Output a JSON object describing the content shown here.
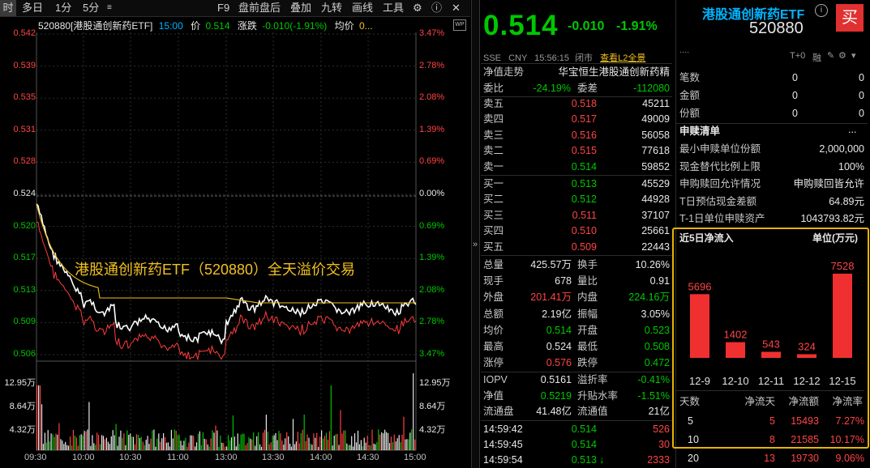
{
  "toolbar": {
    "items": [
      "时",
      "多日",
      "1分",
      "5分",
      "F9",
      "盘前盘后",
      "叠加",
      "九转",
      "画线",
      "工具"
    ],
    "active": "时"
  },
  "chart": {
    "info_code": "520880[港股通创新药ETF]",
    "info_time": "15:00",
    "info_price_label": "价",
    "info_price": "0.514",
    "info_change_label": "涨跌",
    "info_change": "-0.010(-1.91%)",
    "info_avg_label": "均价",
    "info_avg": "0...",
    "y_left": [
      "0.542",
      "0.539",
      "0.535",
      "0.531",
      "0.528",
      "0.524",
      "0.520",
      "0.517",
      "0.513",
      "0.509",
      "0.506"
    ],
    "y_right": [
      "3.47%",
      "2.78%",
      "2.08%",
      "1.39%",
      "0.69%",
      "0.00%",
      "0.69%",
      "1.39%",
      "2.08%",
      "2.78%",
      "3.47%"
    ],
    "vol_left": [
      "12.95万",
      "8.64万",
      "4.32万"
    ],
    "vol_right": [
      "12.95万",
      "8.64万",
      "4.32万"
    ],
    "x_labels": [
      "09:30",
      "10:00",
      "10:30",
      "11:00",
      "13:00",
      "13:30",
      "14:00",
      "14:30",
      "15:00"
    ],
    "annotation": "港股通创新药ETF（520880）全天溢价交易"
  },
  "header": {
    "price": "0.514",
    "change": "-0.010",
    "change_pct": "-1.91%",
    "name": "港股通创新药ETF",
    "code": "520880",
    "buy_label": "买",
    "exchange": "SSE",
    "currency": "CNY",
    "time": "15:56:15",
    "status": "闭市",
    "l2": "查看L2全景",
    "t0": "T+0",
    "rong": "融"
  },
  "nav": {
    "label": "净值走势",
    "tracking": "华宝恒生港股通创新药精"
  },
  "weibi": {
    "label1": "委比",
    "value1": "-24.19%",
    "label2": "委差",
    "value2": "-112080"
  },
  "asks": [
    {
      "label": "卖五",
      "price": "0.518",
      "vol": "45211"
    },
    {
      "label": "卖四",
      "price": "0.517",
      "vol": "49009"
    },
    {
      "label": "卖三",
      "price": "0.516",
      "vol": "56058"
    },
    {
      "label": "卖二",
      "price": "0.515",
      "vol": "77618"
    },
    {
      "label": "卖一",
      "price": "0.514",
      "vol": "59852"
    }
  ],
  "bids": [
    {
      "label": "买一",
      "price": "0.513",
      "vol": "45529"
    },
    {
      "label": "买二",
      "price": "0.512",
      "vol": "44928"
    },
    {
      "label": "买三",
      "price": "0.511",
      "vol": "37107"
    },
    {
      "label": "买四",
      "price": "0.510",
      "vol": "25661"
    },
    {
      "label": "买五",
      "price": "0.509",
      "vol": "22443"
    }
  ],
  "stats": [
    {
      "l1": "总量",
      "v1": "425.57万",
      "c1": "white",
      "l2": "换手",
      "v2": "10.26%",
      "c2": "white"
    },
    {
      "l1": "现手",
      "v1": "678",
      "c1": "white",
      "l2": "量比",
      "v2": "0.91",
      "c2": "white"
    },
    {
      "l1": "外盘",
      "v1": "201.41万",
      "c1": "red",
      "l2": "内盘",
      "v2": "224.16万",
      "c2": "green"
    },
    {
      "l1": "总额",
      "v1": "2.19亿",
      "c1": "white",
      "l2": "振幅",
      "v2": "3.05%",
      "c2": "white"
    },
    {
      "l1": "均价",
      "v1": "0.514",
      "c1": "green",
      "l2": "开盘",
      "v2": "0.523",
      "c2": "green"
    },
    {
      "l1": "最高",
      "v1": "0.524",
      "c1": "white",
      "l2": "最低",
      "v2": "0.508",
      "c2": "green"
    },
    {
      "l1": "涨停",
      "v1": "0.576",
      "c1": "red",
      "l2": "跌停",
      "v2": "0.472",
      "c2": "green"
    }
  ],
  "iopv": [
    {
      "l1": "IOPV",
      "v1": "0.5161",
      "c1": "white",
      "l2": "溢折率",
      "v2": "-0.41%",
      "c2": "green"
    },
    {
      "l1": "净值",
      "v1": "0.5219",
      "c1": "green",
      "l2": "升贴水率",
      "v2": "-1.51%",
      "c2": "green"
    },
    {
      "l1": "流通盘",
      "v1": "41.48亿",
      "c1": "white",
      "l2": "流通值",
      "v2": "21亿",
      "c2": "white"
    }
  ],
  "ticks": [
    {
      "time": "14:59:42",
      "price": "0.514",
      "vol": "526",
      "arrow": ""
    },
    {
      "time": "14:59:45",
      "price": "0.514",
      "vol": "30",
      "arrow": ""
    },
    {
      "time": "14:59:54",
      "price": "0.513",
      "vol": "2333",
      "arrow": "↓"
    }
  ],
  "top_right": {
    "rows": [
      {
        "label": "笔数",
        "v1": "0",
        "v2": "0"
      },
      {
        "label": "金额",
        "v1": "0",
        "v2": "0"
      },
      {
        "label": "份额",
        "v1": "0",
        "v2": "0"
      }
    ]
  },
  "subscribe": {
    "title": "申赎清单",
    "more": "...",
    "rows": [
      {
        "label": "最小申赎单位份额",
        "value": "2,000,000"
      },
      {
        "label": "现金替代比例上限",
        "value": "100%"
      },
      {
        "label": "申购赎回允许情况",
        "value": "申购赎回皆允许"
      },
      {
        "label": "T日预估现金差额",
        "value": "64.89元"
      },
      {
        "label": "T-1日单位申赎资产",
        "value": "1043793.82元"
      }
    ]
  },
  "inflow": {
    "title": "近5日净流入",
    "unit": "单位(万元)",
    "chart_data": {
      "type": "bar",
      "categories": [
        "12-9",
        "12-10",
        "12-11",
        "12-12",
        "12-15"
      ],
      "values": [
        5696,
        1402,
        543,
        324,
        7528
      ],
      "color": "#f03030"
    },
    "table_header": [
      "天数",
      "净流天",
      "净流额",
      "净流率"
    ],
    "table": [
      {
        "days": "5",
        "flow_days": "5",
        "amount": "15493",
        "rate": "7.27%"
      },
      {
        "days": "10",
        "flow_days": "8",
        "amount": "21585",
        "rate": "10.17%"
      },
      {
        "days": "20",
        "flow_days": "13",
        "amount": "19730",
        "rate": "9.06%"
      }
    ]
  }
}
